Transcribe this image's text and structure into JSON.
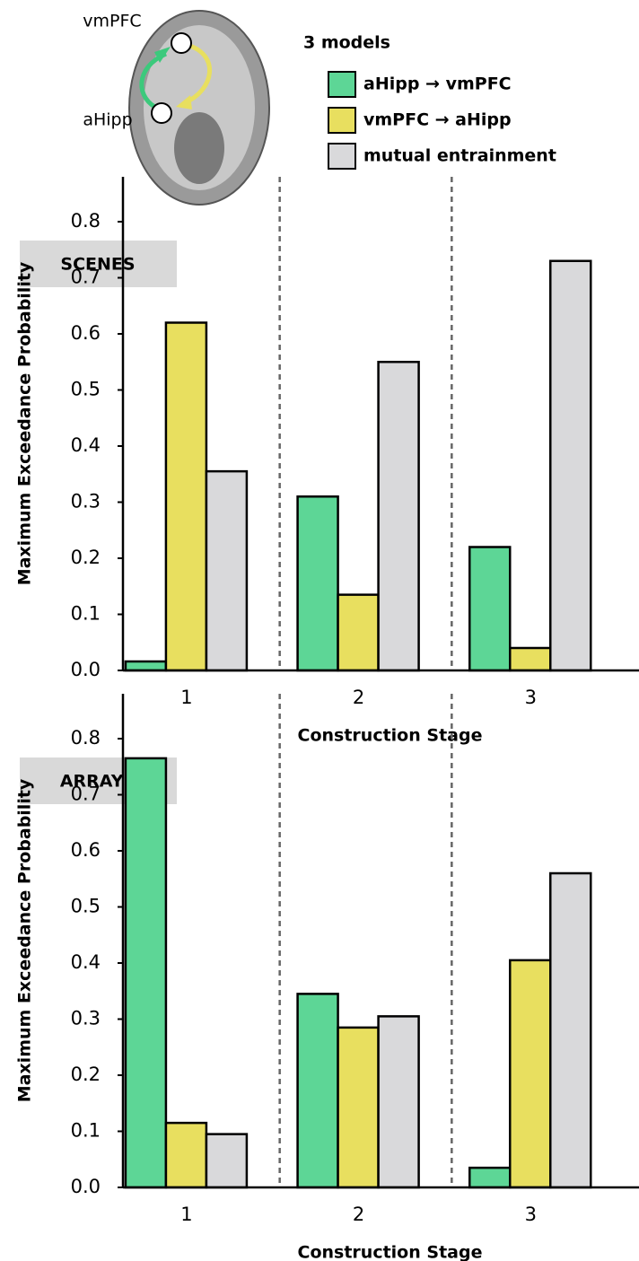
{
  "diagram": {
    "labels": [
      "vmPFC",
      "aHipp"
    ]
  },
  "legend": {
    "title": "3 models",
    "series": [
      {
        "name": "aHipp → vmPFC",
        "color": "#5dd696"
      },
      {
        "name": "vmPFC → aHipp",
        "color": "#e8df5f"
      },
      {
        "name": "mutual entrainment",
        "color": "#d9d9db"
      }
    ]
  },
  "chart_data": [
    {
      "type": "bar",
      "title": "SCENES",
      "x_label": "Construction Stage",
      "y_label": "Maximum Exceedance Probability",
      "categories": [
        "1",
        "2",
        "3"
      ],
      "series": [
        {
          "values": [
            0.016,
            0.31,
            0.22
          ]
        },
        {
          "values": [
            0.62,
            0.135,
            0.04
          ]
        },
        {
          "values": [
            0.355,
            0.55,
            0.73
          ]
        }
      ],
      "ylim": [
        0,
        0.88
      ],
      "yticks": [
        {
          "value": 0,
          "label": "0.0"
        },
        0.1,
        0.2,
        0.3,
        0.4,
        0.5,
        0.6,
        0.7,
        0.8
      ]
    },
    {
      "type": "bar",
      "title": "ARRAYS",
      "x_label": "Construction Stage",
      "y_label": "Maximum Exceedance Probability",
      "categories": [
        "1",
        "2",
        "3"
      ],
      "series": [
        {
          "values": [
            0.765,
            0.345,
            0.035
          ]
        },
        {
          "values": [
            0.115,
            0.285,
            0.405
          ]
        },
        {
          "values": [
            0.095,
            0.305,
            0.56
          ]
        }
      ],
      "ylim": [
        0,
        0.88
      ],
      "yticks": [
        {
          "value": 0,
          "label": "0.0"
        },
        0.1,
        0.2,
        0.3,
        0.4,
        0.5,
        0.6,
        0.7,
        0.8
      ]
    }
  ]
}
